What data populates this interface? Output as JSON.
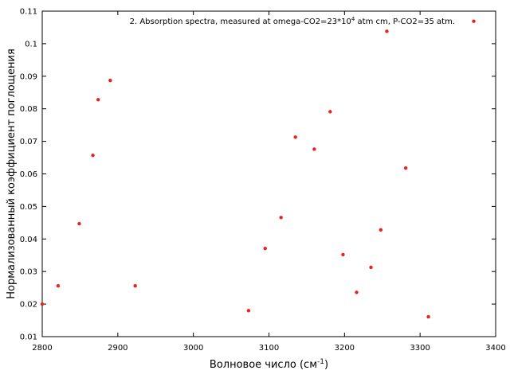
{
  "chart_data": {
    "type": "scatter",
    "legend_text": "2. Absorption spectra, measured at omega-CO2=23*10",
    "legend_sup": "4",
    "legend_tail": " atm cm, P-CO2=35 atm.",
    "legend_position": "top-right",
    "xlabel": "Волновое число (см",
    "xlabel_sup": "-1",
    "xlabel_tail": ")",
    "ylabel": "Нормализованный коэффициент поглощения",
    "xlim": [
      2800,
      3400
    ],
    "ylim": [
      0.01,
      0.11
    ],
    "xticks": [
      "2800",
      "2900",
      "3000",
      "3100",
      "3200",
      "3300",
      "3400"
    ],
    "yticks": [
      "0.01",
      "0.02",
      "0.03",
      "0.04",
      "0.05",
      "0.06",
      "0.07",
      "0.08",
      "0.09",
      "0.1",
      "0.11"
    ],
    "grid": false,
    "point_color": "#e8231c",
    "points": [
      {
        "x": 2800,
        "y": 0.02
      },
      {
        "x": 2821,
        "y": 0.0256
      },
      {
        "x": 2849,
        "y": 0.0447
      },
      {
        "x": 2867,
        "y": 0.0657
      },
      {
        "x": 2874,
        "y": 0.0828
      },
      {
        "x": 2890,
        "y": 0.0887
      },
      {
        "x": 2923,
        "y": 0.0256
      },
      {
        "x": 3073,
        "y": 0.018
      },
      {
        "x": 3095,
        "y": 0.0371
      },
      {
        "x": 3116,
        "y": 0.0466
      },
      {
        "x": 3135,
        "y": 0.0713
      },
      {
        "x": 3160,
        "y": 0.0676
      },
      {
        "x": 3181,
        "y": 0.0791
      },
      {
        "x": 3198,
        "y": 0.0352
      },
      {
        "x": 3216,
        "y": 0.0236
      },
      {
        "x": 3235,
        "y": 0.0313
      },
      {
        "x": 3248,
        "y": 0.0428
      },
      {
        "x": 3256,
        "y": 0.1038
      },
      {
        "x": 3281,
        "y": 0.0618
      },
      {
        "x": 3311,
        "y": 0.0161
      },
      {
        "x": 3371,
        "y": 0.1069
      }
    ]
  }
}
